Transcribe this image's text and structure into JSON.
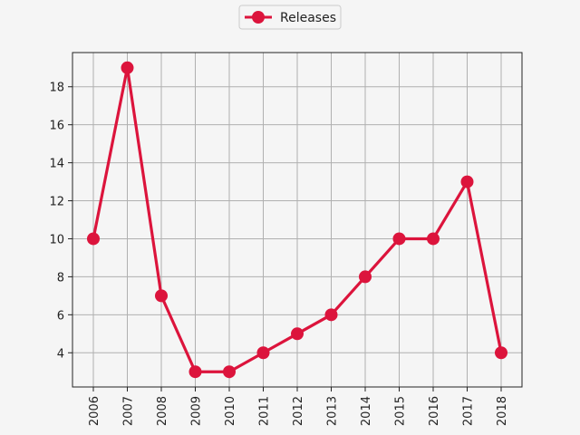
{
  "chart_data": {
    "type": "line",
    "title": "",
    "xlabel": "",
    "ylabel": "",
    "categories": [
      "2006",
      "2007",
      "2008",
      "2009",
      "2010",
      "2011",
      "2012",
      "2013",
      "2014",
      "2015",
      "2016",
      "2017",
      "2018"
    ],
    "series": [
      {
        "name": "Releases",
        "color": "#dc143c",
        "values": [
          10,
          19,
          7,
          3,
          3,
          4,
          5,
          6,
          8,
          10,
          10,
          13,
          4
        ]
      }
    ],
    "ylim": [
      2.2,
      19.8
    ],
    "yticks": [
      "4",
      "6",
      "8",
      "10",
      "12",
      "14",
      "16",
      "18"
    ],
    "grid": true,
    "legend_position": "top-center",
    "x_tick_rotation": "vertical"
  }
}
